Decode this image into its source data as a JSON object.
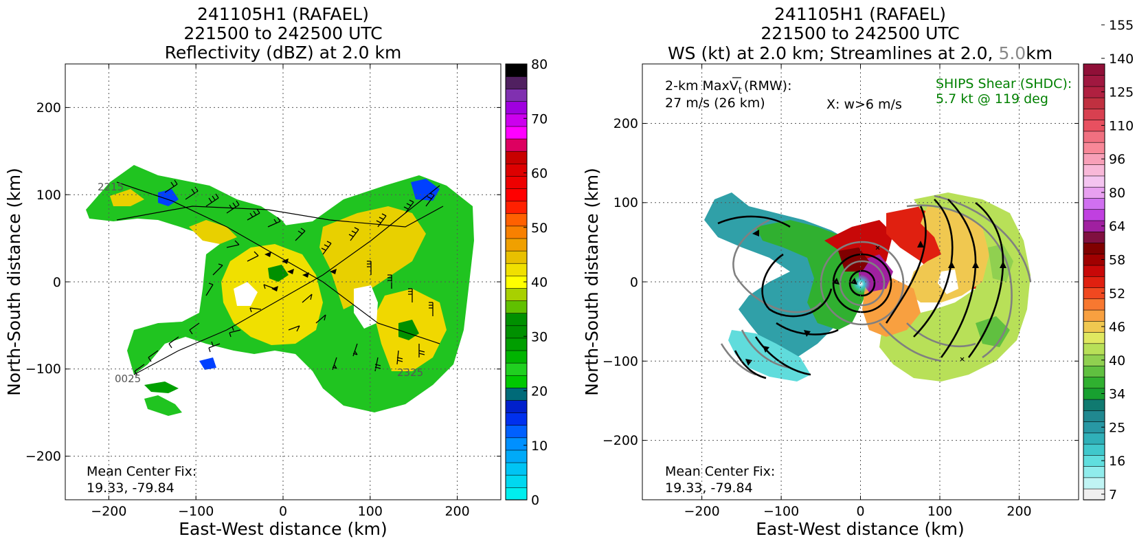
{
  "left_panel": {
    "title_lines": [
      "241105H1 (RAFAEL)",
      "221500 to 242500 UTC",
      "Reflectivity (dBZ) at 2.0 km"
    ],
    "xlabel": "East-West distance (km)",
    "ylabel": "North-South distance (km)",
    "ticks": [
      "−200",
      "−100",
      "0",
      "100",
      "200"
    ],
    "mean_center_fix": [
      "Mean Center Fix:",
      "19.33, -79.84"
    ],
    "time_marks": [
      "2215",
      "0025",
      "2325"
    ]
  },
  "right_panel": {
    "title_lines": [
      "241105H1 (RAFAEL)",
      "221500 to 242500 UTC"
    ],
    "title_line3_a": "WS (kt) at 2.0 km; Streamlines at 2.0, ",
    "title_line3_b": "5.0",
    "title_line3_c": "km",
    "xlabel": "East-West distance (km)",
    "ylabel": "North-South distance (km)",
    "xticks": [
      "−200",
      "−100",
      "0",
      "100",
      "200"
    ],
    "yticks": [
      "200",
      "100",
      "0",
      "−100",
      "−200"
    ],
    "maxvt_label": "2-km MaxV",
    "maxvt_sub": "t",
    "maxvt_rmw": "(RMW):",
    "maxvt_value": "27 m/s (26 km)",
    "w_note": "X: w>6 m/s",
    "ships_line1": "SHIPS Shear (SHDC):",
    "ships_line2": "5.7 kt @ 119 deg",
    "mean_center_fix": [
      "Mean Center Fix:",
      "19.33, -79.84"
    ]
  },
  "chart_data": [
    {
      "type": "heatmap",
      "title": "241105H1 (RAFAEL) 221500 to 242500 UTC Reflectivity (dBZ) at 2.0 km",
      "xlabel": "East-West distance (km)",
      "ylabel": "North-South distance (km)",
      "xlim": [
        -250,
        250
      ],
      "ylim": [
        -250,
        250
      ],
      "ticks": [
        -200,
        -100,
        0,
        100,
        200
      ],
      "grid": true,
      "colorbar": {
        "label": "Reflectivity (dBZ)",
        "min": 0,
        "max": 80,
        "tick_labels": [
          0,
          10,
          20,
          30,
          40,
          50,
          60,
          70,
          80
        ],
        "colors": [
          "#00eeee",
          "#00d8f0",
          "#00c4f4",
          "#00aaf8",
          "#0090ff",
          "#0060ff",
          "#0030ee",
          "#0020cc",
          "#006a78",
          "#00c800",
          "#20d020",
          "#00b400",
          "#009e00",
          "#009000",
          "#009000",
          "#60c000",
          "#a8d000",
          "#ffff00",
          "#f0e000",
          "#e8c000",
          "#f0a000",
          "#f88000",
          "#ff6000",
          "#ff2000",
          "#ff0000",
          "#ee0000",
          "#dd0000",
          "#c80000",
          "#dd0060",
          "#ff00ff",
          "#cc00ee",
          "#a000e0",
          "#8030b0",
          "#502060",
          "#000000"
        ]
      },
      "annotations": [
        "Mean Center Fix: 19.33, -79.84",
        "2215",
        "0025",
        "2325"
      ]
    },
    {
      "type": "heatmap",
      "title": "241105H1 (RAFAEL) 221500 to 242500 UTC WS (kt) at 2.0 km; Streamlines at 2.0, 5.0km",
      "xlabel": "East-West distance (km)",
      "ylabel": "North-South distance (km)",
      "xlim": [
        -275,
        275
      ],
      "ylim": [
        -275,
        275
      ],
      "ticks": [
        -200,
        -100,
        0,
        100,
        200
      ],
      "grid": true,
      "colorbar": {
        "label": "WS (kt)",
        "tick_labels": [
          7,
          16,
          25,
          34,
          40,
          46,
          52,
          58,
          64,
          80,
          96,
          110,
          125,
          140,
          155
        ],
        "colors": [
          "#f0f0f0",
          "#c0f4f4",
          "#90ecec",
          "#60dede",
          "#40c8cc",
          "#30b0b8",
          "#2898a4",
          "#208890",
          "#107a70",
          "#18a030",
          "#30b030",
          "#60c040",
          "#90d050",
          "#b8e058",
          "#e0e860",
          "#f0c850",
          "#f8a040",
          "#f87830",
          "#f04820",
          "#e02010",
          "#c80808",
          "#a00000",
          "#800000",
          "#801040",
          "#a020a0",
          "#c040e0",
          "#d070f0",
          "#e8a0f0",
          "#f4c4f0",
          "#f8b8d8",
          "#f8a0b8",
          "#f88898",
          "#f07080",
          "#e85060",
          "#d84050",
          "#c03040",
          "#b02040",
          "#a01840",
          "#901038"
        ]
      },
      "annotations": [
        "2-km MaxVt (RMW): 27 m/s (26 km)",
        "X: w>6 m/s",
        "SHIPS Shear (SHDC): 5.7 kt @ 119 deg",
        "Mean Center Fix: 19.33, -79.84"
      ]
    }
  ]
}
